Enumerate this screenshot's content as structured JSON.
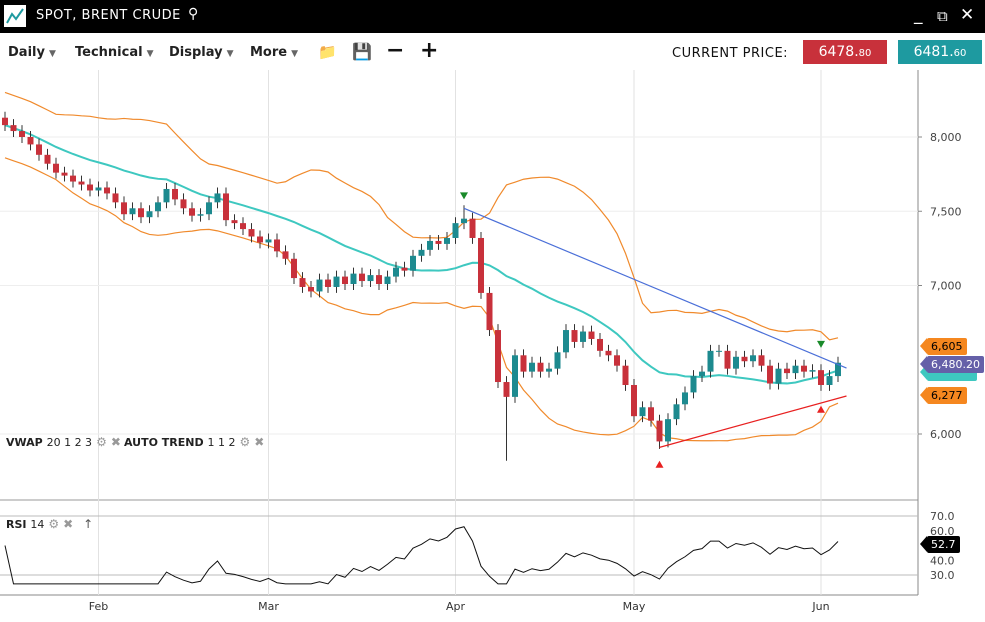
{
  "window": {
    "title": "SPOT, BRENT CRUDE",
    "icons": [
      "chart-logo-icon",
      "search-icon",
      "minimize-icon",
      "popout-icon",
      "close-icon"
    ]
  },
  "toolbar": {
    "menus": [
      "Daily",
      "Technical",
      "Display",
      "More"
    ],
    "buttons": [
      "open-folder-icon",
      "save-icon",
      "zoom-out-icon",
      "zoom-in-icon"
    ],
    "current_price_label": "CURRENT PRICE:",
    "bid": {
      "main": "6478.",
      "dec": "80",
      "color": "#c8313b"
    },
    "ask": {
      "main": "6481.",
      "dec": "60",
      "color": "#1e9aa0"
    }
  },
  "studies": {
    "vwap": {
      "name": "VWAP",
      "params": "20 1 2 3"
    },
    "trend": {
      "name": "AUTO TREND",
      "params": "1 1 2"
    },
    "rsi": {
      "name": "RSI",
      "params": "14"
    }
  },
  "price_tags": {
    "upper_band": "6,605",
    "last": "6,480.20",
    "lower_band": "6,277",
    "rsi": "52.7"
  },
  "chart_data": {
    "type": "candlestick",
    "y_ticks": [
      "8,000",
      "7,500",
      "7,000",
      "6,000"
    ],
    "y_tick_values": [
      8000,
      7500,
      7000,
      6000
    ],
    "rsi_ticks": [
      "70.0",
      "60.0",
      "40.0",
      "30.0"
    ],
    "rsi_tick_values": [
      70,
      60,
      40,
      30
    ],
    "x_labels": [
      {
        "label": "Feb",
        "index": 11
      },
      {
        "label": "Mar",
        "index": 31
      },
      {
        "label": "Apr",
        "index": 53
      },
      {
        "label": "May",
        "index": 74
      },
      {
        "label": "Jun",
        "index": 96
      }
    ],
    "colors": {
      "up": "#1d8a8f",
      "down": "#c8313b",
      "sma": "#3ec8c0",
      "bands": "#f08a2c",
      "trend_down": "#4a6fd8",
      "trend_up": "#e82020"
    },
    "closes": [
      8080,
      8040,
      8000,
      7950,
      7880,
      7820,
      7760,
      7740,
      7700,
      7680,
      7640,
      7660,
      7620,
      7560,
      7480,
      7520,
      7460,
      7500,
      7560,
      7650,
      7580,
      7520,
      7470,
      7480,
      7560,
      7620,
      7440,
      7420,
      7380,
      7330,
      7290,
      7310,
      7230,
      7180,
      7050,
      6990,
      6960,
      7040,
      6990,
      7060,
      7010,
      7080,
      7030,
      7070,
      7010,
      7060,
      7120,
      7100,
      7200,
      7240,
      7300,
      7280,
      7320,
      7420,
      7450,
      7320,
      6950,
      6700,
      6350,
      6250,
      6530,
      6420,
      6480,
      6420,
      6440,
      6550,
      6700,
      6620,
      6690,
      6640,
      6560,
      6530,
      6460,
      6330,
      6120,
      6180,
      6090,
      5950,
      6100,
      6200,
      6280,
      6390,
      6420,
      6560,
      6560,
      6440,
      6520,
      6490,
      6530,
      6460,
      6340,
      6440,
      6410,
      6460,
      6420,
      6430,
      6330,
      6390,
      6480
    ],
    "first_open": 8130,
    "wick_extremes": {
      "54": {
        "high": 7540
      },
      "59": {
        "low": 5820
      },
      "77": {
        "low": 5900
      }
    },
    "trendlines": [
      {
        "from": [
          54,
          7520
        ],
        "to": [
          99,
          6444
        ],
        "color": "trend_down"
      },
      {
        "from": [
          77,
          5910
        ],
        "to": [
          99,
          6256
        ],
        "color": "trend_up"
      }
    ],
    "signals": [
      {
        "index": 54,
        "type": "sell",
        "price": 7600
      },
      {
        "index": 96,
        "type": "sell",
        "price": 6600
      },
      {
        "index": 77,
        "type": "buy",
        "price": 5800
      },
      {
        "index": 96,
        "type": "buy",
        "price": 6170
      }
    ],
    "rsi_last": 52.7
  }
}
